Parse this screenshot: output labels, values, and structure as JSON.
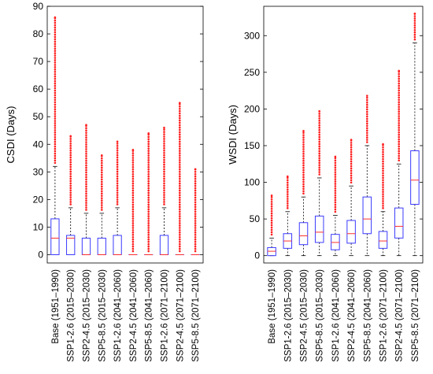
{
  "colors": {
    "box": "#3b3bff",
    "median": "#ff3030",
    "whisker": "#000000",
    "outlier": "#ff2020"
  },
  "chart_data": [
    {
      "type": "boxplot",
      "ylabel": "CSDI (Days)",
      "ylim": [
        -3,
        90
      ],
      "yticks": [
        0,
        10,
        20,
        30,
        40,
        50,
        60,
        70,
        80,
        90
      ],
      "grid": false,
      "categories": [
        "Base (1951–1990)",
        "SSP1-2.6 (2015–2030)",
        "SSP2-4.5 (2015–2030)",
        "SSP5-8.5 (2015–2030)",
        "SSP1-2.6 (2041–2060)",
        "SSP2-4.5 (2041–2060)",
        "SSP5-8.5 (2041–2060)",
        "SSP1-2.6 (2071–2100)",
        "SSP2-4.5 (2071–2100)",
        "SSP5-8.5 (2071–2100)"
      ],
      "series": [
        {
          "q1": 0,
          "median": 6,
          "q3": 13,
          "whisker_low": 0,
          "whisker_high": 32,
          "outlier_max": 86
        },
        {
          "q1": 0,
          "median": 6,
          "q3": 7,
          "whisker_low": 0,
          "whisker_high": 17,
          "outlier_max": 43
        },
        {
          "q1": 0,
          "median": 0,
          "q3": 6,
          "whisker_low": 0,
          "whisker_high": 15,
          "outlier_max": 47
        },
        {
          "q1": 0,
          "median": 0,
          "q3": 6,
          "whisker_low": 0,
          "whisker_high": 15,
          "outlier_max": 36
        },
        {
          "q1": 0,
          "median": 0,
          "q3": 7,
          "whisker_low": 0,
          "whisker_high": 17,
          "outlier_max": 41
        },
        {
          "q1": 0,
          "median": 0,
          "q3": 0,
          "whisker_low": 0,
          "whisker_high": 0,
          "outlier_max": 38
        },
        {
          "q1": 0,
          "median": 0,
          "q3": 0,
          "whisker_low": 0,
          "whisker_high": 0,
          "outlier_max": 44
        },
        {
          "q1": 0,
          "median": 0,
          "q3": 7,
          "whisker_low": 0,
          "whisker_high": 17,
          "outlier_max": 46
        },
        {
          "q1": 0,
          "median": 0,
          "q3": 0,
          "whisker_low": 0,
          "whisker_high": 0,
          "outlier_max": 55
        },
        {
          "q1": 0,
          "median": 0,
          "q3": 0,
          "whisker_low": 0,
          "whisker_high": 0,
          "outlier_max": 31
        }
      ]
    },
    {
      "type": "boxplot",
      "ylabel": "WSDI (Days)",
      "ylim": [
        -10,
        340
      ],
      "yticks": [
        0,
        50,
        100,
        150,
        200,
        250,
        300
      ],
      "grid": false,
      "categories": [
        "Base (1951–1990)",
        "SSP1-2.6 (2015–2030)",
        "SSP2-4.5 (2015–2030)",
        "SSP5-8.5 (2015–2030)",
        "SSP1-2.6 (2041–2060)",
        "SSP2-4.5 (2041–2060)",
        "SSP5-8.5 (2041–2060)",
        "SSP1-2.6 (2071–2100)",
        "SSP2-4.5 (2071–2100)",
        "SSP5-8.5 (2071–2100)"
      ],
      "series": [
        {
          "q1": 0,
          "median": 6,
          "q3": 11,
          "whisker_low": 0,
          "whisker_high": 24,
          "outlier_max": 82
        },
        {
          "q1": 10,
          "median": 20,
          "q3": 30,
          "whisker_low": 0,
          "whisker_high": 60,
          "outlier_max": 108
        },
        {
          "q1": 15,
          "median": 27,
          "q3": 45,
          "whisker_low": 0,
          "whisker_high": 80,
          "outlier_max": 170
        },
        {
          "q1": 18,
          "median": 32,
          "q3": 54,
          "whisker_low": 0,
          "whisker_high": 106,
          "outlier_max": 197
        },
        {
          "q1": 8,
          "median": 18,
          "q3": 29,
          "whisker_low": 0,
          "whisker_high": 55,
          "outlier_max": 135
        },
        {
          "q1": 17,
          "median": 30,
          "q3": 48,
          "whisker_low": 0,
          "whisker_high": 95,
          "outlier_max": 158
        },
        {
          "q1": 30,
          "median": 50,
          "q3": 80,
          "whisker_low": 0,
          "whisker_high": 150,
          "outlier_max": 218
        },
        {
          "q1": 10,
          "median": 20,
          "q3": 33,
          "whisker_low": 0,
          "whisker_high": 60,
          "outlier_max": 152
        },
        {
          "q1": 24,
          "median": 40,
          "q3": 65,
          "whisker_low": 0,
          "whisker_high": 125,
          "outlier_max": 252
        },
        {
          "q1": 70,
          "median": 103,
          "q3": 143,
          "whisker_low": 0,
          "whisker_high": 290,
          "outlier_max": 330
        }
      ]
    }
  ]
}
